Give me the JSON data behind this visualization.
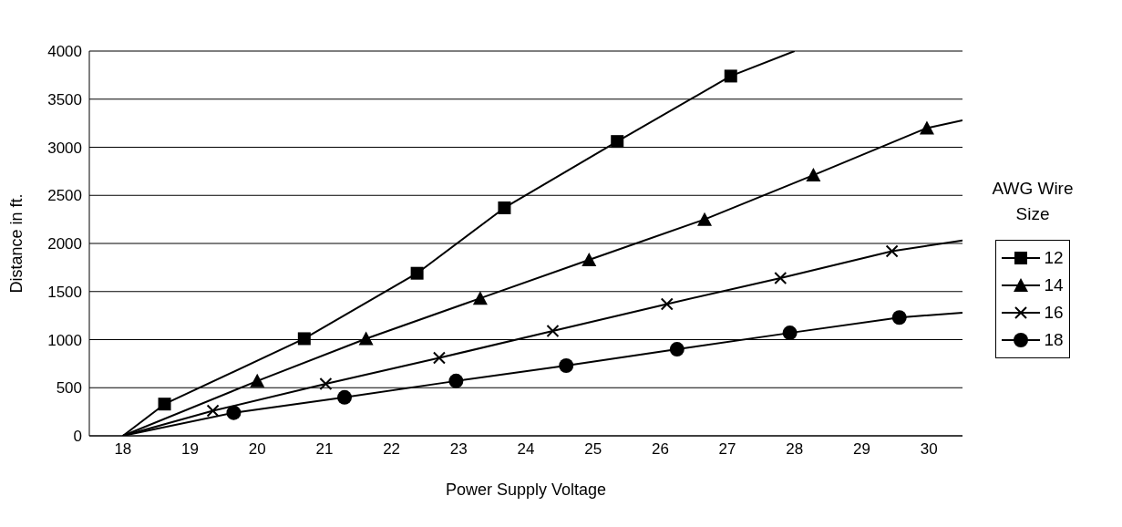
{
  "chart_data": {
    "type": "line",
    "xlabel": "Power Supply Voltage",
    "ylabel": "Distance in ft.",
    "legend_title": "AWG Wire Size",
    "legend": "right",
    "grid": "y",
    "xlim": [
      17.5,
      30.5
    ],
    "xticks": [
      18,
      19,
      20,
      21,
      22,
      23,
      24,
      25,
      26,
      27,
      28,
      29,
      30
    ],
    "ylim": [
      0,
      4000
    ],
    "yticks": [
      0,
      500,
      1000,
      1500,
      2000,
      2500,
      3000,
      3500,
      4000
    ],
    "series": [
      {
        "name": "12",
        "color": "#000000",
        "marker": "square",
        "x": [
          18,
          18.62,
          20.7,
          22.38,
          23.68,
          25.36,
          27.05,
          28.0
        ],
        "values": [
          0,
          330,
          1010,
          1690,
          2370,
          3060,
          3740,
          4000
        ]
      },
      {
        "name": "14",
        "color": "#000000",
        "marker": "triangle",
        "x": [
          18,
          20.0,
          21.62,
          23.32,
          24.94,
          26.66,
          28.28,
          29.97,
          30.5
        ],
        "values": [
          0,
          570,
          1010,
          1430,
          1830,
          2250,
          2710,
          3200,
          3280
        ]
      },
      {
        "name": "16",
        "color": "#000000",
        "marker": "cross",
        "x": [
          18,
          19.34,
          21.02,
          22.71,
          24.4,
          26.1,
          27.79,
          29.45,
          30.5
        ],
        "values": [
          0,
          260,
          540,
          810,
          1090,
          1370,
          1640,
          1920,
          2030
        ]
      },
      {
        "name": "18",
        "color": "#000000",
        "marker": "circle",
        "x": [
          18,
          19.65,
          21.3,
          22.96,
          24.6,
          26.25,
          27.93,
          29.56,
          30.5
        ],
        "values": [
          0,
          240,
          400,
          570,
          730,
          900,
          1070,
          1230,
          1280
        ]
      }
    ]
  }
}
